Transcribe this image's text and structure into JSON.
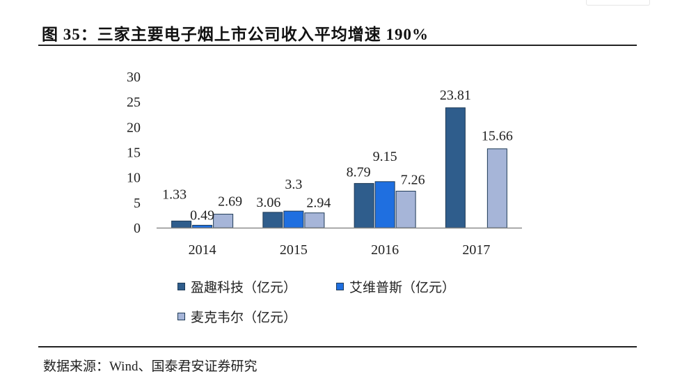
{
  "header": {
    "title": "图 35：三家主要电子烟上市公司收入平均增速 190%"
  },
  "footer": {
    "source": "数据来源：Wind、国泰君安证券研究"
  },
  "colors": {
    "series_1": "#2f5d8c",
    "series_2": "#1f6fe0",
    "series_3": "#a6b5d8",
    "bar_stroke": "#1e3a56",
    "axis": "#8c8c8c"
  },
  "chart_data": {
    "type": "bar",
    "title": "",
    "xlabel": "",
    "ylabel": "",
    "ylim": [
      0,
      30
    ],
    "yticks": [
      "0",
      "5",
      "10",
      "15",
      "20",
      "25",
      "30"
    ],
    "grid": false,
    "legend_position": "bottom-left",
    "categories": [
      "2014",
      "2015",
      "2016",
      "2017"
    ],
    "series": [
      {
        "name": "盈趣科技（亿元）",
        "values": [
          1.33,
          3.06,
          8.79,
          23.81
        ],
        "labels": [
          "1.33",
          "3.06",
          "8.79",
          "23.81"
        ]
      },
      {
        "name": "艾维普斯（亿元）",
        "values": [
          0.49,
          3.3,
          9.15,
          null
        ],
        "labels": [
          "0.49",
          "3.3",
          "9.15",
          ""
        ]
      },
      {
        "name": "麦克韦尔（亿元）",
        "values": [
          2.69,
          2.94,
          7.26,
          15.66
        ],
        "labels": [
          "2.69",
          "2.94",
          "7.26",
          "15.66"
        ]
      }
    ]
  }
}
